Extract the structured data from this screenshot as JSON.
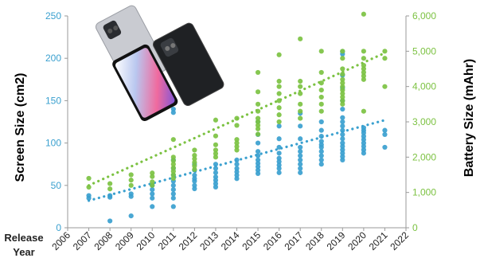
{
  "chart_data": {
    "type": "scatter",
    "title": "",
    "x_side_label": [
      "Release",
      "Year"
    ],
    "xticks": [
      "2006",
      "2007",
      "2008",
      "2009",
      "2010",
      "2011",
      "2012",
      "2013",
      "2014",
      "2015",
      "2016",
      "2017",
      "2018",
      "2019",
      "2020",
      "2021",
      "2022"
    ],
    "xlim": [
      2006,
      2022
    ],
    "left_axis": {
      "label": "Screen Size (cm2)",
      "ylim": [
        0,
        250
      ],
      "ticks": [
        "0",
        "50",
        "100",
        "150",
        "200",
        "250"
      ],
      "color": "#3aa0cf"
    },
    "right_axis": {
      "label": "Battery Size (mAhr)",
      "ylim": [
        0,
        6000
      ],
      "ticks": [
        "0",
        "1,000",
        "2,000",
        "3,000",
        "4,000",
        "5,000",
        "6,000"
      ],
      "color": "#7cc242"
    },
    "series": [
      {
        "name": "Screen Size (cm2)",
        "axis": "left",
        "color": "#3aa0cf",
        "points": [
          [
            2007,
            35
          ],
          [
            2007,
            38
          ],
          [
            2008,
            36
          ],
          [
            2008,
            38
          ],
          [
            2008,
            8
          ],
          [
            2009,
            37
          ],
          [
            2009,
            40
          ],
          [
            2009,
            14
          ],
          [
            2010,
            40
          ],
          [
            2010,
            45
          ],
          [
            2010,
            50
          ],
          [
            2010,
            35
          ],
          [
            2010,
            25
          ],
          [
            2011,
            140
          ],
          [
            2011,
            136
          ],
          [
            2011,
            80
          ],
          [
            2011,
            70
          ],
          [
            2011,
            62
          ],
          [
            2011,
            55
          ],
          [
            2011,
            50
          ],
          [
            2011,
            45
          ],
          [
            2011,
            40
          ],
          [
            2011,
            35
          ],
          [
            2011,
            25
          ],
          [
            2012,
            75
          ],
          [
            2012,
            68
          ],
          [
            2012,
            62
          ],
          [
            2012,
            58
          ],
          [
            2012,
            55
          ],
          [
            2012,
            50
          ],
          [
            2012,
            46
          ],
          [
            2013,
            75
          ],
          [
            2013,
            70
          ],
          [
            2013,
            65
          ],
          [
            2013,
            60
          ],
          [
            2013,
            56
          ],
          [
            2013,
            52
          ],
          [
            2013,
            48
          ],
          [
            2014,
            80
          ],
          [
            2014,
            75
          ],
          [
            2014,
            70
          ],
          [
            2014,
            66
          ],
          [
            2014,
            62
          ],
          [
            2014,
            58
          ],
          [
            2015,
            125
          ],
          [
            2015,
            110
          ],
          [
            2015,
            100
          ],
          [
            2015,
            90
          ],
          [
            2015,
            85
          ],
          [
            2015,
            80
          ],
          [
            2015,
            76
          ],
          [
            2015,
            72
          ],
          [
            2015,
            68
          ],
          [
            2015,
            64
          ],
          [
            2016,
            120
          ],
          [
            2016,
            105
          ],
          [
            2016,
            95
          ],
          [
            2016,
            88
          ],
          [
            2016,
            82
          ],
          [
            2016,
            78
          ],
          [
            2016,
            74
          ],
          [
            2016,
            70
          ],
          [
            2016,
            65
          ],
          [
            2017,
            135
          ],
          [
            2017,
            120
          ],
          [
            2017,
            105
          ],
          [
            2017,
            95
          ],
          [
            2017,
            90
          ],
          [
            2017,
            85
          ],
          [
            2017,
            80
          ],
          [
            2017,
            75
          ],
          [
            2017,
            70
          ],
          [
            2017,
            65
          ],
          [
            2018,
            125
          ],
          [
            2018,
            115
          ],
          [
            2018,
            108
          ],
          [
            2018,
            102
          ],
          [
            2018,
            98
          ],
          [
            2018,
            95
          ],
          [
            2018,
            90
          ],
          [
            2018,
            85
          ],
          [
            2018,
            80
          ],
          [
            2018,
            75
          ],
          [
            2019,
            208
          ],
          [
            2019,
            205
          ],
          [
            2019,
            180
          ],
          [
            2019,
            165
          ],
          [
            2019,
            150
          ],
          [
            2019,
            140
          ],
          [
            2019,
            130
          ],
          [
            2019,
            125
          ],
          [
            2019,
            120
          ],
          [
            2019,
            115
          ],
          [
            2019,
            110
          ],
          [
            2019,
            105
          ],
          [
            2019,
            100
          ],
          [
            2019,
            96
          ],
          [
            2019,
            92
          ],
          [
            2019,
            88
          ],
          [
            2019,
            84
          ],
          [
            2019,
            80
          ],
          [
            2020,
            118
          ],
          [
            2020,
            115
          ],
          [
            2020,
            112
          ],
          [
            2020,
            108
          ],
          [
            2020,
            104
          ],
          [
            2020,
            100
          ],
          [
            2020,
            96
          ],
          [
            2020,
            92
          ],
          [
            2020,
            88
          ],
          [
            2021,
            115
          ],
          [
            2021,
            110
          ],
          [
            2021,
            95
          ]
        ],
        "trend": [
          [
            2007,
            32
          ],
          [
            2021,
            127
          ]
        ]
      },
      {
        "name": "Battery Size (mAhr)",
        "axis": "right",
        "color": "#7cc242",
        "points": [
          [
            2007,
            1400
          ],
          [
            2007,
            1150
          ],
          [
            2008,
            1250
          ],
          [
            2008,
            1100
          ],
          [
            2009,
            1500
          ],
          [
            2009,
            1350
          ],
          [
            2009,
            1200
          ],
          [
            2010,
            1550
          ],
          [
            2010,
            1450
          ],
          [
            2010,
            1300
          ],
          [
            2010,
            1200
          ],
          [
            2011,
            2500
          ],
          [
            2011,
            2000
          ],
          [
            2011,
            1900
          ],
          [
            2011,
            1800
          ],
          [
            2011,
            1700
          ],
          [
            2011,
            1600
          ],
          [
            2011,
            1500
          ],
          [
            2011,
            1400
          ],
          [
            2012,
            2200
          ],
          [
            2012,
            2050
          ],
          [
            2012,
            1950
          ],
          [
            2012,
            1850
          ],
          [
            2012,
            1750
          ],
          [
            2012,
            1650
          ],
          [
            2013,
            3050
          ],
          [
            2013,
            2600
          ],
          [
            2013,
            2350
          ],
          [
            2013,
            2200
          ],
          [
            2013,
            2100
          ],
          [
            2013,
            2000
          ],
          [
            2014,
            3100
          ],
          [
            2014,
            2900
          ],
          [
            2014,
            2500
          ],
          [
            2014,
            2400
          ],
          [
            2014,
            2300
          ],
          [
            2014,
            2200
          ],
          [
            2015,
            4400
          ],
          [
            2015,
            3850
          ],
          [
            2015,
            3500
          ],
          [
            2015,
            3300
          ],
          [
            2015,
            3100
          ],
          [
            2015,
            3000
          ],
          [
            2015,
            2900
          ],
          [
            2015,
            2800
          ],
          [
            2015,
            2650
          ],
          [
            2016,
            4900
          ],
          [
            2016,
            4150
          ],
          [
            2016,
            4000
          ],
          [
            2016,
            3800
          ],
          [
            2016,
            3600
          ],
          [
            2016,
            3400
          ],
          [
            2016,
            3200
          ],
          [
            2016,
            3000
          ],
          [
            2017,
            5350
          ],
          [
            2017,
            4150
          ],
          [
            2017,
            4000
          ],
          [
            2017,
            3800
          ],
          [
            2017,
            3500
          ],
          [
            2017,
            3300
          ],
          [
            2017,
            3100
          ],
          [
            2018,
            5000
          ],
          [
            2018,
            4400
          ],
          [
            2018,
            4100
          ],
          [
            2018,
            3900
          ],
          [
            2018,
            3700
          ],
          [
            2018,
            3500
          ],
          [
            2018,
            3300
          ],
          [
            2019,
            5000
          ],
          [
            2019,
            4800
          ],
          [
            2019,
            4500
          ],
          [
            2019,
            4350
          ],
          [
            2019,
            4200
          ],
          [
            2019,
            4100
          ],
          [
            2019,
            4000
          ],
          [
            2019,
            3900
          ],
          [
            2019,
            3800
          ],
          [
            2019,
            3700
          ],
          [
            2019,
            3600
          ],
          [
            2019,
            3500
          ],
          [
            2020,
            6050
          ],
          [
            2020,
            5000
          ],
          [
            2020,
            4800
          ],
          [
            2020,
            4600
          ],
          [
            2020,
            4500
          ],
          [
            2020,
            4400
          ],
          [
            2020,
            4300
          ],
          [
            2020,
            4200
          ],
          [
            2020,
            3300
          ],
          [
            2021,
            5000
          ],
          [
            2021,
            4800
          ],
          [
            2021,
            4000
          ]
        ],
        "trend": [
          [
            2007,
            1200
          ],
          [
            2021,
            4950
          ]
        ]
      }
    ],
    "grid": false,
    "legend": "none"
  },
  "colors": {
    "screen": "#3aa0cf",
    "battery": "#7cc242",
    "axis": "#333333",
    "text": "#222222"
  }
}
